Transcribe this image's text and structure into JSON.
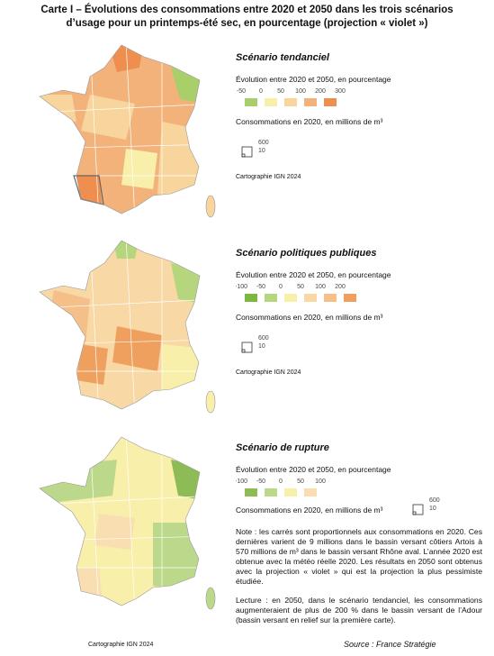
{
  "header": {
    "title_line1": "Carte I – Évolutions des consommations entre 2020 et 2050 dans les trois scénarios",
    "title_line2": "d’usage pour un printemps-été sec, en pourcentage (projection « violet »)"
  },
  "scenarios": [
    {
      "title": "Scénario tendanciel",
      "legend_title": "Évolution entre 2020 et 2050, en pourcentage",
      "labels": [
        -50,
        0,
        50,
        100,
        200,
        300
      ],
      "colors": [
        "#a8cf6a",
        "#f8efaa",
        "#f8d59c",
        "#f3b27a",
        "#ee8f4f"
      ],
      "size_title": "Consommations en 2020, en millions de m³",
      "size_labels": [
        600,
        10
      ],
      "credit": "Cartographie IGN 2024"
    },
    {
      "title": "Scénario politiques publiques",
      "legend_title": "Évolution entre 2020 et 2050, en pourcentage",
      "labels": [
        -100,
        -50,
        0,
        50,
        100,
        200
      ],
      "colors": [
        "#7cb740",
        "#b5d67c",
        "#f8efaa",
        "#f8d8a4",
        "#f5bf8a",
        "#efa05e"
      ],
      "size_title": "Consommations en 2020, en millions de m³",
      "size_labels": [
        600,
        10
      ],
      "credit": "Cartographie IGN 2024"
    },
    {
      "title": "Scénario de rupture",
      "legend_title": "Évolution entre 2020 et 2050, en pourcentage",
      "labels": [
        -100,
        -50,
        0,
        50,
        100
      ],
      "colors": [
        "#8dbc57",
        "#bcd88a",
        "#f8efaa",
        "#f8deb0"
      ],
      "size_title": "Consommations en 2020, en millions de m³",
      "size_labels": [
        600,
        10
      ],
      "credit": "Cartographie IGN 2024"
    }
  ],
  "notes": {
    "note": "Note : les carrés sont proportionnels aux consommations en 2020. Ces dernières varient de 9 millions dans le bassin versant côtiers Artois à 570 millions de m³ dans le bassin versant Rhône aval. L’année 2020 est obtenue avec la météo réelle 2020. Les résultats en 2050 sont obtenus avec la projection « violet » qui est la projection la plus pessimiste étudiée.",
    "lecture": "Lecture : en 2050, dans le scénario tendanciel, les consommations augmenteraient de plus de 200 % dans le bassin versant de l’Adour (bassin versant en relief sur la première carte)."
  },
  "footer": {
    "source": "Source : France Stratégie"
  }
}
